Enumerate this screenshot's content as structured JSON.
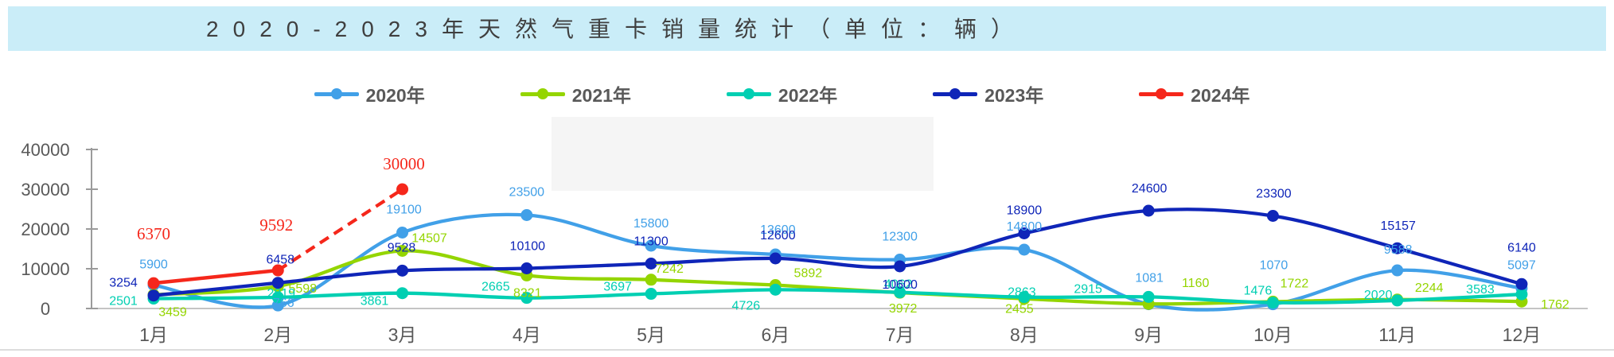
{
  "title": "2020-2023年天然气重卡销量统计（单位：辆）",
  "chart_data": {
    "type": "line",
    "title": "2020-2023年天然气重卡销量统计（单位：辆）",
    "categories": [
      "1月",
      "2月",
      "3月",
      "4月",
      "5月",
      "6月",
      "7月",
      "8月",
      "9月",
      "10月",
      "11月",
      "12月"
    ],
    "series": [
      {
        "name": "2020年",
        "color": "#41A0E8",
        "values": [
          5900,
          766,
          19100,
          23500,
          15800,
          13600,
          12300,
          14800,
          1081,
          1070,
          9588,
          5097
        ]
      },
      {
        "name": "2021年",
        "color": "#94D500",
        "values": [
          3459,
          5598,
          14507,
          8321,
          7242,
          5892,
          3972,
          2455,
          1160,
          1722,
          2244,
          1762
        ]
      },
      {
        "name": "2022年",
        "color": "#00CFB2",
        "values": [
          2501,
          2819,
          3861,
          2665,
          3697,
          4726,
          4062,
          2863,
          2915,
          1476,
          2020,
          3583
        ]
      },
      {
        "name": "2023年",
        "color": "#0F25B8",
        "values": [
          3254,
          6458,
          9528,
          10100,
          11300,
          12600,
          10600,
          18900,
          24600,
          23300,
          15157,
          6140
        ]
      },
      {
        "name": "2024年",
        "color": "#F5271B",
        "values": [
          6370,
          9592,
          30000
        ],
        "dashed_from": 1
      }
    ],
    "ylim": [
      0,
      40000
    ],
    "yticks": [
      0,
      10000,
      20000,
      30000,
      40000
    ],
    "ytick_labels": [
      "0",
      "10000",
      "20000",
      "30000",
      "40000"
    ],
    "legend_position": "top",
    "grid": false
  }
}
